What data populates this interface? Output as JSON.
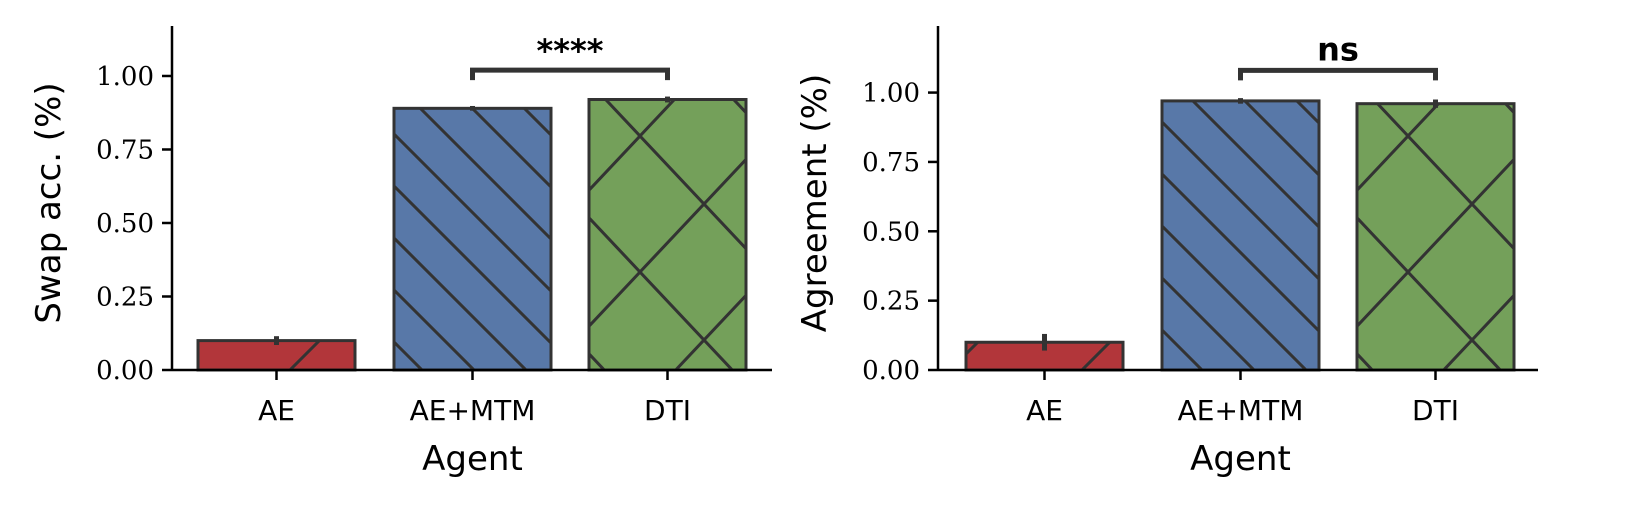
{
  "chart_data": [
    {
      "type": "bar",
      "categories": [
        "AE",
        "AE+MTM",
        "DTI"
      ],
      "values": [
        0.1,
        0.89,
        0.92
      ],
      "errors": [
        0.015,
        0.008,
        0.01
      ],
      "colors": [
        "#b2363a",
        "#5878a8",
        "#74a05a"
      ],
      "hatches": [
        "forward-diagonal",
        "back-diagonal",
        "crosshatch"
      ],
      "xlabel": "Agent",
      "ylabel": "Swap acc.  (%)",
      "ylim": [
        0,
        1.17
      ],
      "yticks": [
        0.0,
        0.25,
        0.5,
        0.75,
        1.0
      ],
      "ytick_labels": [
        "0.00",
        "0.25",
        "0.50",
        "0.75",
        "1.00"
      ],
      "grid": false,
      "significance": {
        "from": 1,
        "to": 2,
        "label": "****",
        "y": 1.02
      }
    },
    {
      "type": "bar",
      "categories": [
        "AE",
        "AE+MTM",
        "DTI"
      ],
      "values": [
        0.1,
        0.97,
        0.96
      ],
      "errors": [
        0.03,
        0.01,
        0.015
      ],
      "colors": [
        "#b2363a",
        "#5878a8",
        "#74a05a"
      ],
      "hatches": [
        "forward-diagonal",
        "back-diagonal",
        "crosshatch"
      ],
      "xlabel": "Agent",
      "ylabel": "Agreement  (%)",
      "ylim": [
        0,
        1.24
      ],
      "yticks": [
        0.0,
        0.25,
        0.5,
        0.75,
        1.0
      ],
      "ytick_labels": [
        "0.00",
        "0.25",
        "0.50",
        "0.75",
        "1.00"
      ],
      "grid": false,
      "significance": {
        "from": 1,
        "to": 2,
        "label": "ns",
        "y": 1.08
      }
    }
  ]
}
